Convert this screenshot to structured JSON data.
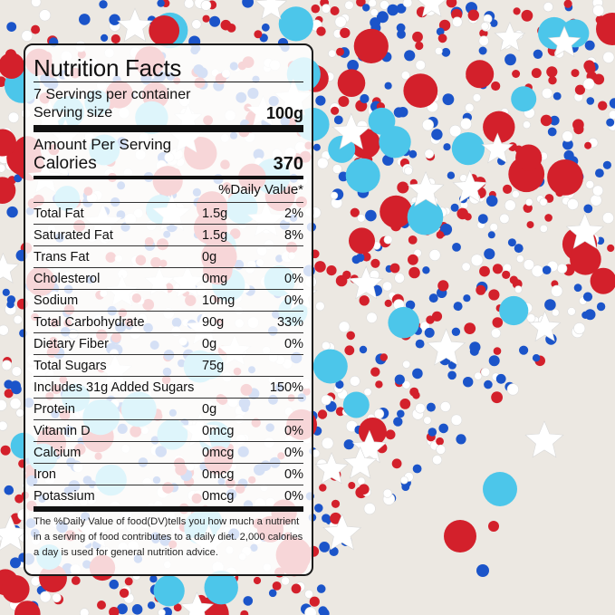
{
  "label": {
    "title": "Nutrition Facts",
    "servings_per_container": "7 Servings per container",
    "serving_size_label": "Serving size",
    "serving_size_value": "100g",
    "amount_per_serving": "Amount Per Serving",
    "calories_label": "Calories",
    "calories_value": "370",
    "daily_value_header": "%Daily Value*",
    "nutrients": [
      {
        "name": "Total Fat",
        "amount": "1.5g",
        "dv": "2%"
      },
      {
        "name": "Saturated Fat",
        "amount": "1.5g",
        "dv": "8%"
      },
      {
        "name": "Trans Fat",
        "amount": "0g",
        "dv": ""
      },
      {
        "name": "Cholesterol",
        "amount": "0mg",
        "dv": "0%"
      },
      {
        "name": "Sodium",
        "amount": "10mg",
        "dv": "0%"
      },
      {
        "name": "Total Carbohydrate",
        "amount": "90g",
        "dv": "33%"
      },
      {
        "name": "Dietary Fiber",
        "amount": "0g",
        "dv": "0%"
      },
      {
        "name": "Total Sugars",
        "amount": "75g",
        "dv": ""
      },
      {
        "name": "Includes 31g Added Sugars",
        "amount": "",
        "dv": "150%"
      },
      {
        "name": "Protein",
        "amount": "0g",
        "dv": ""
      },
      {
        "name": "Vitamin D",
        "amount": "0mcg",
        "dv": "0%"
      },
      {
        "name": "Calcium",
        "amount": "0mcg",
        "dv": "0%"
      },
      {
        "name": "Iron",
        "amount": "0mcg",
        "dv": "0%"
      },
      {
        "name": "Potassium",
        "amount": "0mcg",
        "dv": "0%"
      }
    ],
    "footnote": "The %Daily Value of food(DV)tells you how much a nutrient in a serving of food contributes to a daily diet. 2,000 calories a day is used for general nutrition advice."
  },
  "colors": {
    "sprinkle_red": "#d3202b",
    "sprinkle_blue": "#1b54c9",
    "sprinkle_light_blue": "#4cc6ea",
    "sprinkle_white": "#ffffff",
    "background": "#ece8e2"
  }
}
